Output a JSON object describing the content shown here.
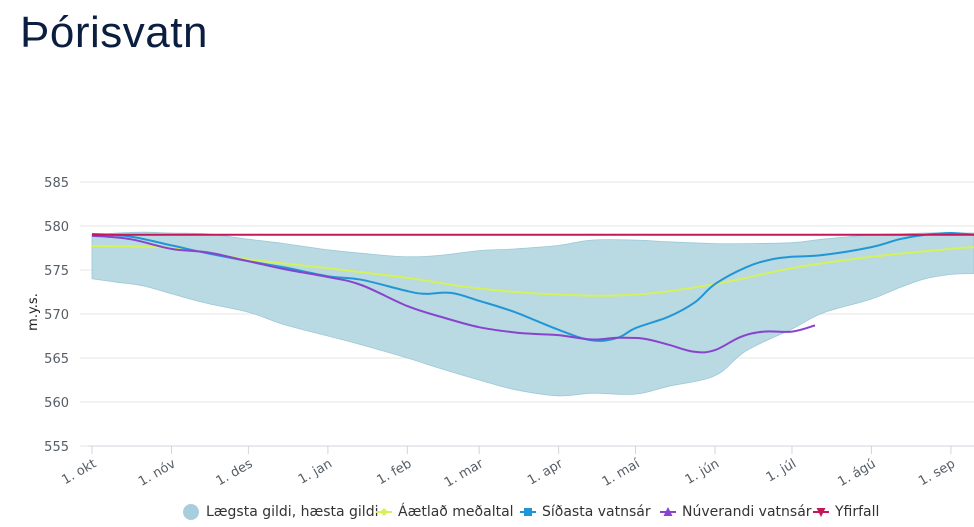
{
  "page": {
    "title": "Þórisvatn"
  },
  "chart_data": {
    "type": "area",
    "title": "",
    "ylabel": "m.y.s.",
    "xlabel": "",
    "ylim": [
      555,
      585
    ],
    "yticks": [
      555,
      560,
      565,
      570,
      575,
      580,
      585
    ],
    "x_domain_days": [
      0,
      344
    ],
    "xticks": [
      {
        "label": "1. okt",
        "day": 0
      },
      {
        "label": "1. nóv",
        "day": 31
      },
      {
        "label": "1. des",
        "day": 61
      },
      {
        "label": "1. jan",
        "day": 92
      },
      {
        "label": "1. feb",
        "day": 123
      },
      {
        "label": "1. mar",
        "day": 151
      },
      {
        "label": "1. apr",
        "day": 182
      },
      {
        "label": "1. maí",
        "day": 212
      },
      {
        "label": "1. jún",
        "day": 243
      },
      {
        "label": "1. júl",
        "day": 273
      },
      {
        "label": "1. ágú",
        "day": 304
      },
      {
        "label": "1. sep",
        "day": 335
      }
    ],
    "grid": true,
    "legend_position": "bottom",
    "series": [
      {
        "name": "Lægsta gildi, hæsta gildi",
        "kind": "arearange",
        "color": "#b5d7e2",
        "points": [
          [
            0,
            574.0,
            579.0
          ],
          [
            10,
            573.6,
            579.2
          ],
          [
            20,
            573.2,
            579.3
          ],
          [
            31,
            572.3,
            579.2
          ],
          [
            45,
            571.2,
            579.1
          ],
          [
            61,
            570.2,
            578.5
          ],
          [
            75,
            568.8,
            578.0
          ],
          [
            92,
            567.5,
            577.3
          ],
          [
            105,
            566.5,
            576.9
          ],
          [
            123,
            565.0,
            576.5
          ],
          [
            137,
            563.7,
            576.7
          ],
          [
            151,
            562.5,
            577.2
          ],
          [
            165,
            561.4,
            577.4
          ],
          [
            182,
            560.7,
            577.8
          ],
          [
            195,
            561.0,
            578.4
          ],
          [
            212,
            560.9,
            578.4
          ],
          [
            225,
            561.8,
            578.2
          ],
          [
            243,
            563.0,
            578.0
          ],
          [
            255,
            565.8,
            578.0
          ],
          [
            273,
            568.3,
            578.1
          ],
          [
            285,
            570.1,
            578.5
          ],
          [
            304,
            571.7,
            579.0
          ],
          [
            315,
            573.0,
            579.1
          ],
          [
            325,
            574.0,
            579.2
          ],
          [
            335,
            574.5,
            579.2
          ],
          [
            344,
            574.6,
            579.2
          ]
        ]
      },
      {
        "name": "Áætlað meðaltal",
        "kind": "line",
        "color": "#d6f25a",
        "points": [
          [
            0,
            577.7
          ],
          [
            31,
            577.5
          ],
          [
            61,
            576.2
          ],
          [
            92,
            575.2
          ],
          [
            123,
            574.1
          ],
          [
            151,
            572.9
          ],
          [
            182,
            572.2
          ],
          [
            212,
            572.2
          ],
          [
            243,
            573.4
          ],
          [
            273,
            575.2
          ],
          [
            304,
            576.5
          ],
          [
            335,
            577.4
          ],
          [
            344,
            577.6
          ]
        ]
      },
      {
        "name": "Síðasta vatnsár",
        "kind": "line",
        "color": "#2196d6",
        "points": [
          [
            0,
            579.1
          ],
          [
            15,
            578.8
          ],
          [
            31,
            577.8
          ],
          [
            45,
            576.9
          ],
          [
            61,
            576.0
          ],
          [
            75,
            575.3
          ],
          [
            92,
            574.3
          ],
          [
            105,
            573.9
          ],
          [
            123,
            572.6
          ],
          [
            130,
            572.3
          ],
          [
            140,
            572.4
          ],
          [
            151,
            571.5
          ],
          [
            165,
            570.2
          ],
          [
            182,
            568.2
          ],
          [
            195,
            567.0
          ],
          [
            205,
            567.3
          ],
          [
            212,
            568.4
          ],
          [
            225,
            569.7
          ],
          [
            235,
            571.3
          ],
          [
            243,
            573.4
          ],
          [
            255,
            575.3
          ],
          [
            265,
            576.2
          ],
          [
            273,
            576.5
          ],
          [
            285,
            576.7
          ],
          [
            304,
            577.6
          ],
          [
            315,
            578.5
          ],
          [
            325,
            579.0
          ],
          [
            335,
            579.2
          ],
          [
            344,
            579.0
          ]
        ]
      },
      {
        "name": "Núverandi vatnsár",
        "kind": "line",
        "color": "#8844cc",
        "points": [
          [
            0,
            578.9
          ],
          [
            15,
            578.5
          ],
          [
            31,
            577.4
          ],
          [
            45,
            577.0
          ],
          [
            61,
            576.0
          ],
          [
            75,
            575.1
          ],
          [
            92,
            574.2
          ],
          [
            105,
            573.3
          ],
          [
            123,
            570.9
          ],
          [
            137,
            569.6
          ],
          [
            151,
            568.5
          ],
          [
            165,
            567.9
          ],
          [
            175,
            567.7
          ],
          [
            182,
            567.6
          ],
          [
            195,
            567.1
          ],
          [
            205,
            567.3
          ],
          [
            215,
            567.2
          ],
          [
            225,
            566.5
          ],
          [
            235,
            565.7
          ],
          [
            243,
            565.9
          ],
          [
            253,
            567.4
          ],
          [
            262,
            568.0
          ],
          [
            273,
            568.0
          ],
          [
            282,
            568.7
          ]
        ]
      },
      {
        "name": "Yfirfall",
        "kind": "line",
        "color": "#c2185b",
        "points": [
          [
            0,
            579.0
          ],
          [
            344,
            579.0
          ]
        ]
      }
    ]
  }
}
